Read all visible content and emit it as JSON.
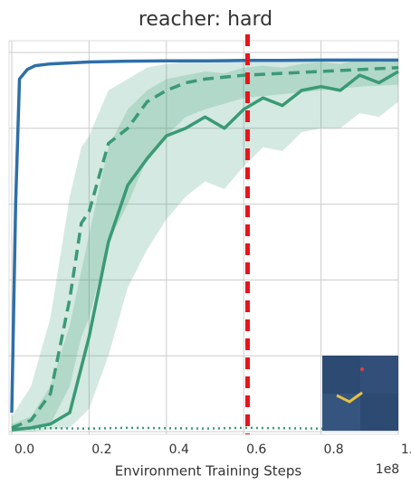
{
  "chart_data": {
    "type": "line",
    "title": "reacher: hard",
    "x_label": "Environment Training Steps",
    "x_offset_label": "1e8",
    "xlim": [
      0,
      100000000
    ],
    "xticks": [
      {
        "value": 0,
        "label": "0.0"
      },
      {
        "value": 20000000,
        "label": "0.2"
      },
      {
        "value": 40000000,
        "label": "0.4"
      },
      {
        "value": 60000000,
        "label": "0.6"
      },
      {
        "value": 80000000,
        "label": "0.8"
      },
      {
        "value": 100000000,
        "label": "1.0"
      }
    ],
    "ylim": [
      0,
      1000
    ],
    "yticks": [
      0,
      200,
      400,
      600,
      800,
      1000
    ],
    "ytick_labels": false,
    "grid": true,
    "vline": {
      "x": 61000000,
      "color": "#e8141a"
    },
    "series": [
      {
        "color": "#2e6fa8",
        "style": "solid",
        "x": [
          0,
          1000000,
          2000000,
          4000000,
          6000000,
          10000000,
          20000000,
          30000000,
          40000000,
          50000000,
          60000000,
          70000000,
          80000000,
          90000000,
          100000000
        ],
        "values": [
          50,
          600,
          930,
          955,
          965,
          970,
          975,
          977,
          978,
          978,
          979,
          979,
          980,
          980,
          980
        ]
      },
      {
        "color": "#3a9a76",
        "style": "dashed",
        "x": [
          0,
          5000000,
          10000000,
          15000000,
          18000000,
          20000000,
          25000000,
          30000000,
          35000000,
          40000000,
          45000000,
          50000000,
          60000000,
          70000000,
          80000000,
          90000000,
          100000000
        ],
        "values": [
          10,
          30,
          100,
          350,
          550,
          580,
          760,
          800,
          870,
          900,
          920,
          930,
          940,
          945,
          950,
          955,
          960
        ],
        "lower": [
          0,
          5,
          20,
          120,
          250,
          300,
          500,
          600,
          720,
          780,
          830,
          850,
          880,
          890,
          900,
          910,
          915
        ],
        "upper": [
          40,
          120,
          300,
          620,
          750,
          780,
          900,
          930,
          960,
          970,
          975,
          975,
          980,
          980,
          980,
          980,
          980
        ]
      },
      {
        "color": "#3a9a76",
        "style": "solid",
        "x": [
          0,
          5000000,
          10000000,
          15000000,
          20000000,
          25000000,
          30000000,
          35000000,
          40000000,
          45000000,
          50000000,
          55000000,
          60000000,
          65000000,
          70000000,
          75000000,
          80000000,
          85000000,
          90000000,
          95000000,
          100000000
        ],
        "values": [
          5,
          10,
          20,
          50,
          250,
          500,
          650,
          720,
          780,
          800,
          830,
          800,
          850,
          880,
          860,
          900,
          910,
          900,
          940,
          920,
          950
        ],
        "lower": [
          0,
          0,
          5,
          10,
          60,
          200,
          380,
          480,
          560,
          620,
          660,
          640,
          700,
          750,
          740,
          790,
          800,
          800,
          840,
          830,
          870
        ],
        "upper": [
          20,
          40,
          120,
          280,
          520,
          750,
          850,
          900,
          930,
          940,
          950,
          945,
          960,
          965,
          960,
          970,
          975,
          970,
          980,
          975,
          980
        ]
      },
      {
        "color": "#3a9a76",
        "style": "dotted",
        "x": [
          0,
          10000000,
          20000000,
          30000000,
          40000000,
          50000000,
          60000000,
          70000000,
          80000000,
          90000000,
          100000000
        ],
        "values": [
          8,
          9,
          8,
          10,
          9,
          8,
          10,
          9,
          8,
          10,
          9
        ]
      }
    ]
  }
}
